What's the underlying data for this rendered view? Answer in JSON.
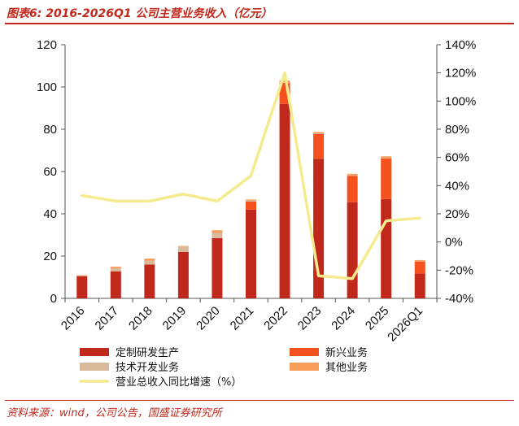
{
  "header": {
    "title": "图表6:  2016-2026Q1 公司主营业务收入（亿元）"
  },
  "footer": {
    "source": "资料来源：wind，公司公告，国盛证券研究所"
  },
  "chart_data": {
    "type": "bar",
    "stacked": true,
    "categories": [
      "2016",
      "2017",
      "2018",
      "2019",
      "2020",
      "2021",
      "2022",
      "2023",
      "2024",
      "2025",
      "2026Q1"
    ],
    "series": [
      {
        "name": "定制研发生产",
        "color": "#c0281c",
        "axis": "left",
        "values": [
          10.5,
          12.8,
          16.0,
          22.0,
          28.5,
          42.0,
          92.0,
          66.0,
          45.5,
          47.0,
          11.8
        ]
      },
      {
        "name": "新兴业务",
        "color": "#f4511e",
        "axis": "left",
        "values": [
          0,
          0,
          0,
          0,
          0,
          3.8,
          10.0,
          11.8,
          12.5,
          19.2,
          5.7
        ]
      },
      {
        "name": "技术开发业务",
        "color": "#d9b99b",
        "axis": "left",
        "values": [
          0.3,
          1.5,
          1.8,
          2.5,
          2.5,
          0.5,
          0.3,
          0.3,
          0.2,
          0.2,
          0.1
        ]
      },
      {
        "name": "其他业务",
        "color": "#f79b59",
        "axis": "left",
        "values": [
          0.2,
          0.7,
          1.0,
          0.3,
          1.2,
          0.5,
          0.7,
          0.6,
          0.7,
          0.8,
          0.5
        ]
      },
      {
        "name": "营业总收入同比增速（%）",
        "type": "line",
        "color": "#f5ea8e",
        "axis": "right",
        "values": [
          33,
          29,
          29,
          34,
          29,
          47,
          120,
          -24,
          -26,
          15,
          17
        ]
      }
    ],
    "y_left": {
      "min": 0,
      "max": 120,
      "ticks": [
        "0",
        "20",
        "40",
        "60",
        "80",
        "100",
        "120"
      ]
    },
    "y_right": {
      "min": -40,
      "max": 140,
      "ticks": [
        "-40%",
        "-20%",
        "0%",
        "20%",
        "40%",
        "60%",
        "80%",
        "100%",
        "120%",
        "140%"
      ]
    },
    "grid": false,
    "legend_position": "bottom"
  }
}
